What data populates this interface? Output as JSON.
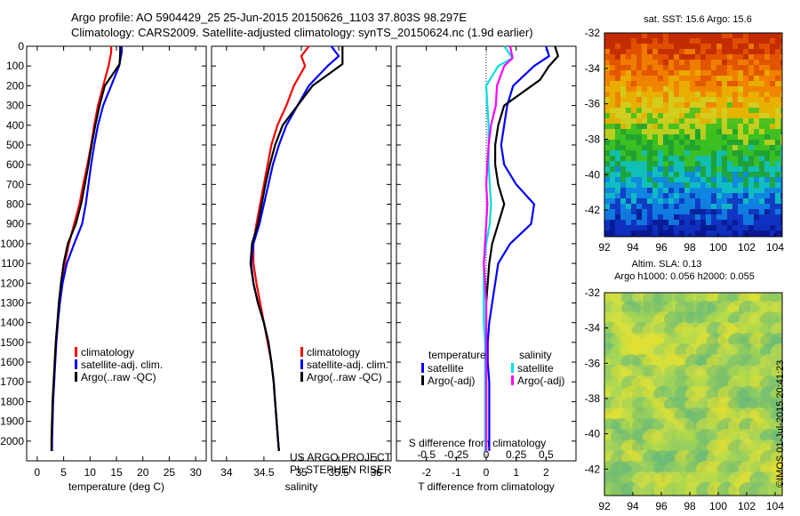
{
  "header": {
    "title_line1": "Argo profile: AO 5904429_25 25-Jun-2015 20150626_1103 37.803S 98.297E",
    "title_line2": "Climatology: CARS2009. Satellite-adjusted climatology: synTS_20150624.nc (1.9d earlier)"
  },
  "footer": {
    "project": "US ARGO PROJECT",
    "pi": "PI: STEPHEN RISER",
    "credit": "©IMOS 01-Jul-2015 20:41:23"
  },
  "maps": {
    "sst_label": "sat. SST: 15.6 Argo: 15.6",
    "sla_label1": "Altim. SLA: 0.13",
    "sla_label2": "Argo h1000: 0.056 h2000: 0.055",
    "lon_ticks": [
      "92",
      "94",
      "96",
      "98",
      "100",
      "102",
      "104"
    ],
    "lat_ticks": [
      "-32",
      "-34",
      "-36",
      "-38",
      "-40",
      "-42"
    ]
  },
  "colors": {
    "climatology": "#ff0000",
    "satellite": "#0000ff",
    "argo": "#000000",
    "satellite_s": "#00e0e0",
    "argo_s": "#ff00ff"
  },
  "chart_data": [
    {
      "type": "line",
      "xlabel": "temperature (deg C)",
      "ylabel": "",
      "xlim": [
        -2,
        32
      ],
      "ylim": [
        2100,
        0
      ],
      "xticks": [
        0,
        5,
        10,
        15,
        20,
        25,
        30
      ],
      "yticks": [
        0,
        100,
        200,
        300,
        400,
        500,
        600,
        700,
        800,
        900,
        1000,
        1100,
        1200,
        1300,
        1400,
        1500,
        1600,
        1700,
        1800,
        1900,
        2000
      ],
      "legend": [
        "climatology",
        "satellite-adj. clim.",
        "Argo(..raw -QC)"
      ],
      "series": [
        {
          "name": "climatology",
          "x": [
            14,
            14,
            13.5,
            12.5,
            11.5,
            10.8,
            10.2,
            9.5,
            8.7,
            8.0,
            7.0,
            6.0,
            5.2,
            4.6,
            4.2,
            3.9,
            3.6,
            3.4,
            3.2,
            3.0,
            2.9,
            2.8,
            2.8
          ],
          "y": [
            0,
            30,
            100,
            200,
            300,
            400,
            500,
            600,
            700,
            800,
            900,
            1000,
            1100,
            1200,
            1300,
            1400,
            1500,
            1600,
            1700,
            1800,
            1900,
            2000,
            2050
          ]
        },
        {
          "name": "satellite-adj. clim.",
          "x": [
            16,
            16,
            15.5,
            14,
            12.5,
            11.5,
            10.8,
            10.2,
            9.7,
            9.2,
            8.5,
            7.0,
            5.6,
            4.8,
            4.3,
            3.9,
            3.6,
            3.4,
            3.2,
            3.0,
            2.9,
            2.8,
            2.8
          ],
          "y": [
            0,
            30,
            100,
            200,
            300,
            400,
            500,
            600,
            700,
            800,
            900,
            1000,
            1100,
            1200,
            1300,
            1400,
            1500,
            1600,
            1700,
            1800,
            1900,
            2000,
            2050
          ]
        },
        {
          "name": "Argo(..raw -QC)",
          "x": [
            15.7,
            15.7,
            15.6,
            12.8,
            11.8,
            11.0,
            10.3,
            9.7,
            9.0,
            8.3,
            7.3,
            5.8,
            5.0,
            4.5,
            4.1,
            3.8,
            3.5,
            3.3,
            3.1,
            2.9,
            2.8,
            2.7,
            2.7
          ],
          "y": [
            0,
            30,
            90,
            200,
            300,
            400,
            500,
            600,
            700,
            800,
            900,
            1000,
            1100,
            1200,
            1300,
            1400,
            1500,
            1600,
            1700,
            1800,
            1900,
            2000,
            2050
          ]
        }
      ]
    },
    {
      "type": "line",
      "xlabel": "salinity",
      "ylabel": "",
      "xlim": [
        33.8,
        36.2
      ],
      "ylim": [
        2100,
        0
      ],
      "xticks": [
        34,
        34.5,
        35,
        35.5,
        36
      ],
      "xticklabels": [
        "34",
        "34.5",
        "35",
        "35.5",
        "36"
      ],
      "legend": [
        "climatology",
        "satellite-adj. clim.",
        "Argo(..raw -QC)"
      ],
      "series": [
        {
          "name": "climatology",
          "x": [
            35.1,
            35.0,
            35.05,
            34.9,
            34.8,
            34.68,
            34.6,
            34.55,
            34.5,
            34.45,
            34.4,
            34.36,
            34.36,
            34.4,
            34.45,
            34.5,
            34.55,
            34.6,
            34.63,
            34.65,
            34.67,
            34.69,
            34.7
          ],
          "y": [
            0,
            50,
            100,
            200,
            300,
            400,
            500,
            600,
            700,
            800,
            900,
            1000,
            1100,
            1200,
            1300,
            1400,
            1500,
            1600,
            1700,
            1800,
            1900,
            2000,
            2050
          ]
        },
        {
          "name": "satellite-adj. clim.",
          "x": [
            35.4,
            35.5,
            35.35,
            35.1,
            34.95,
            34.8,
            34.7,
            34.62,
            34.56,
            34.5,
            34.44,
            34.36,
            34.33,
            34.36,
            34.42,
            34.5,
            34.56,
            34.6,
            34.63,
            34.65,
            34.67,
            34.69,
            34.7
          ],
          "y": [
            0,
            50,
            100,
            200,
            300,
            400,
            500,
            600,
            700,
            800,
            900,
            1000,
            1100,
            1200,
            1300,
            1400,
            1500,
            1600,
            1700,
            1800,
            1900,
            2000,
            2050
          ]
        },
        {
          "name": "Argo(..raw -QC)",
          "x": [
            35.55,
            35.55,
            35.55,
            35.15,
            34.95,
            34.75,
            34.65,
            34.58,
            34.52,
            34.47,
            34.42,
            34.34,
            34.32,
            34.36,
            34.42,
            34.5,
            34.56,
            34.6,
            34.63,
            34.65,
            34.67,
            34.69,
            34.7
          ],
          "y": [
            0,
            50,
            90,
            200,
            300,
            400,
            500,
            600,
            700,
            800,
            900,
            1000,
            1100,
            1200,
            1300,
            1400,
            1500,
            1600,
            1700,
            1800,
            1900,
            2000,
            2050
          ]
        }
      ]
    },
    {
      "type": "line",
      "xlabel": "T difference from climatology",
      "ylabel": "",
      "top_label": "S difference from climatology",
      "xlim": [
        -3,
        3
      ],
      "s_xlim": [
        -0.75,
        0.75
      ],
      "ylim": [
        2100,
        0
      ],
      "xticks": [
        -2,
        -1,
        0,
        1,
        2
      ],
      "s_xticks": [
        -0.5,
        -0.25,
        0,
        0.25,
        0.5
      ],
      "s_xticklabels": [
        "-0.5",
        "-0.25",
        "0",
        "0.25",
        "0.5"
      ],
      "legend_headers": [
        "temperature",
        "salinity"
      ],
      "legend": [
        "satellite",
        "Argo(-adj)",
        "satellite",
        "Argo(-adj)"
      ],
      "series": [
        {
          "name": "satellite",
          "variable": "temperature",
          "x": [
            2.0,
            2.1,
            1.6,
            0.9,
            0.7,
            0.6,
            0.5,
            0.6,
            1.0,
            1.6,
            1.5,
            0.8,
            0.4,
            0.3,
            0.2,
            0.1,
            0.05,
            0.05,
            0.1,
            0.1,
            0.1
          ],
          "y": [
            0,
            50,
            100,
            200,
            300,
            400,
            500,
            600,
            700,
            800,
            900,
            1000,
            1100,
            1200,
            1300,
            1400,
            1500,
            1600,
            1700,
            1800,
            2050
          ]
        },
        {
          "name": "Argo(-adj)",
          "variable": "temperature",
          "x": [
            2.3,
            2.4,
            2.1,
            1.8,
            0.6,
            0.4,
            0.3,
            0.3,
            0.4,
            0.6,
            0.4,
            0.2,
            0.1,
            0.05,
            0.0,
            0.0,
            0.0,
            0.0,
            0.0,
            0.0,
            0.0
          ],
          "y": [
            0,
            50,
            100,
            170,
            300,
            400,
            500,
            600,
            700,
            800,
            900,
            1000,
            1100,
            1200,
            1300,
            1400,
            1500,
            1600,
            1700,
            1800,
            2050
          ]
        },
        {
          "name": "satellite",
          "variable": "salinity",
          "x": [
            0.15,
            0.22,
            0.1,
            0.0,
            0.01,
            0.02,
            0.02,
            0.02,
            0.03,
            0.04,
            0.03,
            0.0,
            -0.02,
            -0.02,
            -0.02,
            -0.02,
            -0.01,
            -0.01,
            -0.01,
            -0.01,
            -0.01
          ],
          "y": [
            0,
            60,
            100,
            200,
            300,
            400,
            500,
            600,
            700,
            800,
            900,
            1000,
            1100,
            1200,
            1300,
            1400,
            1500,
            1600,
            1700,
            1800,
            2050
          ]
        },
        {
          "name": "Argo(-adj)",
          "variable": "salinity",
          "x": [
            0.2,
            0.22,
            0.15,
            0.09,
            0.08,
            0.04,
            0.02,
            0.01,
            0.0,
            0.01,
            0.0,
            -0.01,
            -0.02,
            -0.01,
            0.0,
            0.0,
            0.0,
            0.0,
            0.0,
            0.0,
            0.0
          ],
          "y": [
            0,
            60,
            100,
            200,
            300,
            400,
            500,
            600,
            700,
            800,
            900,
            1000,
            1100,
            1200,
            1300,
            1400,
            1500,
            1600,
            1700,
            1800,
            2050
          ]
        }
      ]
    },
    {
      "type": "heatmap",
      "title": "sat. SST: 15.6 Argo: 15.6",
      "xlim": [
        92,
        104.5
      ],
      "ylim": [
        -43.5,
        -32
      ],
      "xticks": [
        92,
        94,
        96,
        98,
        100,
        102,
        104
      ],
      "yticks": [
        -32,
        -34,
        -36,
        -38,
        -40,
        -42
      ],
      "bands": [
        {
          "lat_range": [
            -32,
            -34.5
          ],
          "color": "orange-red"
        },
        {
          "lat_range": [
            -34.5,
            -37
          ],
          "color": "orange-yellow"
        },
        {
          "lat_range": [
            -37,
            -39.5
          ],
          "color": "green"
        },
        {
          "lat_range": [
            -39.5,
            -41.5
          ],
          "color": "cyan"
        },
        {
          "lat_range": [
            -41.5,
            -43.5
          ],
          "color": "blue"
        }
      ]
    },
    {
      "type": "heatmap",
      "title": "Altim. SLA: 0.13",
      "xlim": [
        92,
        104.5
      ],
      "ylim": [
        -43.5,
        -32
      ],
      "xticks": [
        92,
        94,
        96,
        98,
        100,
        102,
        104
      ],
      "yticks": [
        -32,
        -34,
        -36,
        -38,
        -40,
        -42
      ],
      "bands": [
        {
          "lat_range": [
            -32,
            -43.5
          ],
          "color": "yellow-green"
        }
      ]
    }
  ]
}
